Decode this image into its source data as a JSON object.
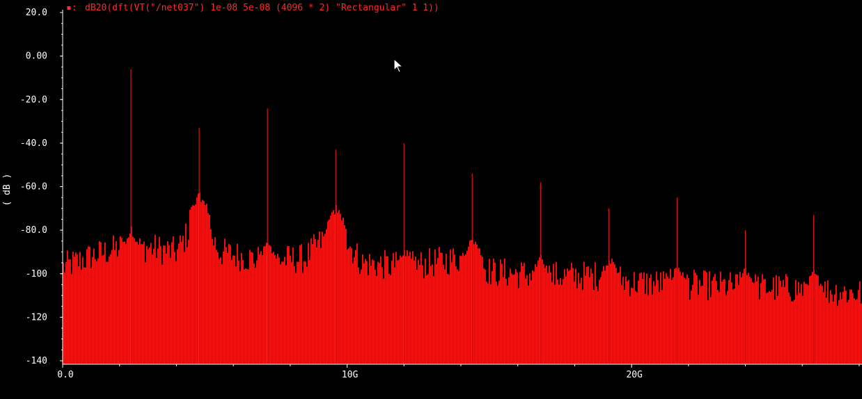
{
  "chart_data": {
    "type": "bar",
    "legend_marker": "▪:",
    "trace_expression": "dB20(dft(VT(\"/net037\") 1e-08 5e-08 (4096 * 2) \"Rectangular\" 1 1))",
    "ylabel": "( dB )",
    "xlabel": "",
    "ylim": [
      -140,
      20
    ],
    "xlim": [
      0,
      28.1
    ],
    "x_unit": "GHz",
    "y_ticks": [
      {
        "value": 20,
        "label": "20.0"
      },
      {
        "value": 0,
        "label": "0.00"
      },
      {
        "value": -20,
        "label": "-20.0"
      },
      {
        "value": -40,
        "label": "-40.0"
      },
      {
        "value": -60,
        "label": "-60.0"
      },
      {
        "value": -80,
        "label": "-80.0"
      },
      {
        "value": -100,
        "label": "-100"
      },
      {
        "value": -120,
        "label": "-120"
      },
      {
        "value": -140,
        "label": "-140"
      }
    ],
    "x_ticks": [
      {
        "value": 0,
        "label": "0.0"
      },
      {
        "value": 10,
        "label": "10G"
      },
      {
        "value": 20,
        "label": "20G"
      }
    ],
    "harmonics": [
      {
        "x": 2.4,
        "y": -6
      },
      {
        "x": 4.8,
        "y": -33
      },
      {
        "x": 7.2,
        "y": -24
      },
      {
        "x": 9.6,
        "y": -43
      },
      {
        "x": 12.0,
        "y": -40
      },
      {
        "x": 14.4,
        "y": -54
      },
      {
        "x": 16.8,
        "y": -58
      },
      {
        "x": 19.2,
        "y": -70
      },
      {
        "x": 21.6,
        "y": -65
      },
      {
        "x": 24.0,
        "y": -80
      },
      {
        "x": 26.4,
        "y": -73
      }
    ],
    "noise_floor": [
      {
        "x": 0.0,
        "y": -97
      },
      {
        "x": 1.0,
        "y": -92
      },
      {
        "x": 2.0,
        "y": -88
      },
      {
        "x": 3.0,
        "y": -88
      },
      {
        "x": 4.0,
        "y": -90
      },
      {
        "x": 4.8,
        "y": -72
      },
      {
        "x": 5.5,
        "y": -90
      },
      {
        "x": 7.0,
        "y": -94
      },
      {
        "x": 8.5,
        "y": -93
      },
      {
        "x": 9.6,
        "y": -78
      },
      {
        "x": 10.5,
        "y": -95
      },
      {
        "x": 12.0,
        "y": -97
      },
      {
        "x": 14.4,
        "y": -92
      },
      {
        "x": 15.0,
        "y": -99
      },
      {
        "x": 17.0,
        "y": -101
      },
      {
        "x": 19.2,
        "y": -101
      },
      {
        "x": 20.0,
        "y": -104
      },
      {
        "x": 22.0,
        "y": -105
      },
      {
        "x": 24.0,
        "y": -106
      },
      {
        "x": 26.0,
        "y": -107
      },
      {
        "x": 28.1,
        "y": -109
      }
    ],
    "grid": false,
    "background": "#000000",
    "trace_color": "#ff1a1a",
    "text_color": "#ffffff"
  }
}
